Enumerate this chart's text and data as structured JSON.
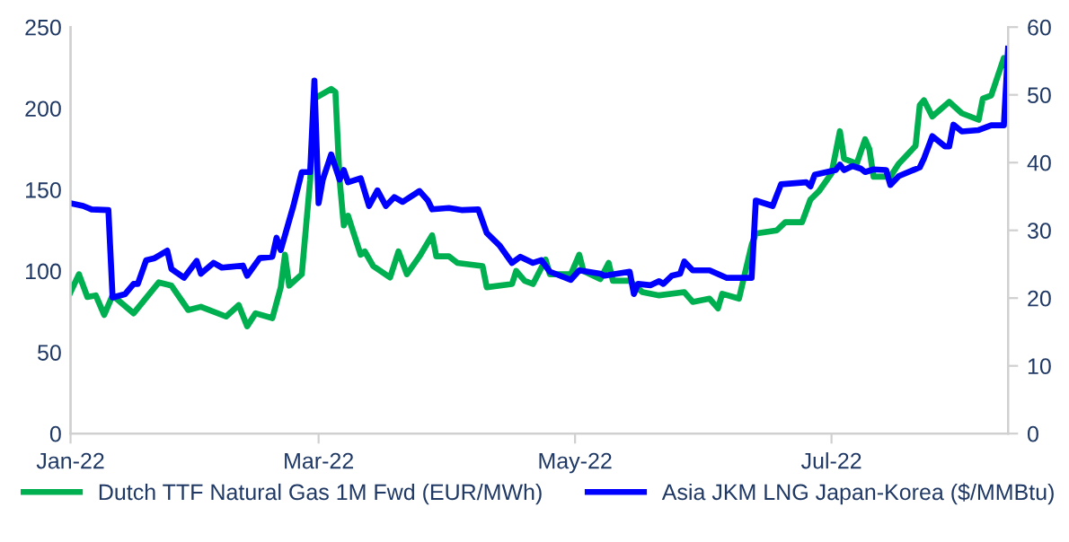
{
  "chart_data": {
    "type": "line",
    "xlim": [
      "2022-01-01",
      "2022-08-12"
    ],
    "xticks": [
      {
        "value": "2022-01-01",
        "label": "Jan-22"
      },
      {
        "value": "2022-03-01",
        "label": "Mar-22"
      },
      {
        "value": "2022-05-01",
        "label": "May-22"
      },
      {
        "value": "2022-07-01",
        "label": "Jul-22"
      }
    ],
    "ylim": [
      0,
      250
    ],
    "yticks": [
      0,
      50,
      100,
      150,
      200,
      250
    ],
    "y2lim": [
      0,
      60
    ],
    "y2ticks": [
      0,
      10,
      20,
      30,
      40,
      50,
      60
    ],
    "grid": false,
    "legend": "bottom",
    "marker": "none",
    "line_style": "solid",
    "series": [
      {
        "name": "Dutch TTF Natural Gas 1M Fwd (EUR/MWh)",
        "color": "#00b050",
        "x": [
          "2022-01-01",
          "2022-01-03",
          "2022-01-05",
          "2022-01-07",
          "2022-01-09",
          "2022-01-11",
          "2022-01-16",
          "2022-01-22",
          "2022-01-25",
          "2022-01-29",
          "2022-02-01",
          "2022-02-07",
          "2022-02-10",
          "2022-02-12",
          "2022-02-14",
          "2022-02-18",
          "2022-02-20",
          "2022-02-21",
          "2022-02-22",
          "2022-02-25",
          "2022-02-27",
          "2022-02-28",
          "2022-03-04",
          "2022-03-05",
          "2022-03-06",
          "2022-03-07",
          "2022-03-08",
          "2022-03-11",
          "2022-03-12",
          "2022-03-14",
          "2022-03-18",
          "2022-03-20",
          "2022-03-22",
          "2022-03-25",
          "2022-03-28",
          "2022-03-29",
          "2022-04-01",
          "2022-04-03",
          "2022-04-09",
          "2022-04-10",
          "2022-04-16",
          "2022-04-17",
          "2022-04-19",
          "2022-04-21",
          "2022-04-24",
          "2022-04-25",
          "2022-04-30",
          "2022-05-02",
          "2022-05-03",
          "2022-05-07",
          "2022-05-09",
          "2022-05-10",
          "2022-05-14",
          "2022-05-17",
          "2022-05-21",
          "2022-05-27",
          "2022-05-29",
          "2022-06-02",
          "2022-06-04",
          "2022-06-05",
          "2022-06-09",
          "2022-06-12",
          "2022-06-13",
          "2022-06-18",
          "2022-06-20",
          "2022-06-24",
          "2022-06-26",
          "2022-06-28",
          "2022-07-01",
          "2022-07-03",
          "2022-07-04",
          "2022-07-07",
          "2022-07-09",
          "2022-07-10",
          "2022-07-11",
          "2022-07-15",
          "2022-07-17",
          "2022-07-21",
          "2022-07-22",
          "2022-07-23",
          "2022-07-25",
          "2022-07-29",
          "2022-08-01",
          "2022-08-05",
          "2022-08-06",
          "2022-08-08",
          "2022-08-11",
          "2022-08-12"
        ],
        "values": [
          87,
          98,
          84,
          85,
          73,
          85,
          74,
          93,
          91,
          76,
          78,
          72,
          79,
          66,
          74,
          71,
          90,
          110,
          91,
          98,
          156,
          206,
          212,
          210,
          156,
          128,
          134,
          110,
          112,
          103,
          96,
          112,
          98,
          109,
          122,
          109,
          109,
          105,
          103,
          90,
          92,
          100,
          94,
          92,
          107,
          98,
          98,
          110,
          100,
          95,
          105,
          94,
          94,
          87,
          85,
          87,
          81,
          83,
          77,
          86,
          83,
          116,
          123,
          125,
          130,
          130,
          144,
          149,
          160,
          186,
          169,
          166,
          181,
          175,
          158,
          158,
          166,
          177,
          202,
          205,
          195,
          204,
          197,
          193,
          206,
          208,
          231,
          223
        ]
      },
      {
        "name": "Asia JKM LNG Japan-Korea ($/MMBtu)",
        "color": "#0000ff",
        "axis": "y2",
        "x": [
          "2022-01-01",
          "2022-01-04",
          "2022-01-06",
          "2022-01-10",
          "2022-01-11",
          "2022-01-14",
          "2022-01-16",
          "2022-01-17",
          "2022-01-19",
          "2022-01-21",
          "2022-01-24",
          "2022-01-25",
          "2022-01-28",
          "2022-01-31",
          "2022-02-01",
          "2022-02-04",
          "2022-02-06",
          "2022-02-11",
          "2022-02-12",
          "2022-02-15",
          "2022-02-18",
          "2022-02-19",
          "2022-02-20",
          "2022-02-23",
          "2022-02-25",
          "2022-02-27",
          "2022-02-28",
          "2022-03-01",
          "2022-03-02",
          "2022-03-04",
          "2022-03-06",
          "2022-03-07",
          "2022-03-08",
          "2022-03-11",
          "2022-03-13",
          "2022-03-15",
          "2022-03-17",
          "2022-03-19",
          "2022-03-21",
          "2022-03-25",
          "2022-03-27",
          "2022-03-28",
          "2022-04-01",
          "2022-04-04",
          "2022-04-08",
          "2022-04-10",
          "2022-04-13",
          "2022-04-16",
          "2022-04-18",
          "2022-04-21",
          "2022-04-23",
          "2022-04-25",
          "2022-04-30",
          "2022-05-02",
          "2022-05-07",
          "2022-05-08",
          "2022-05-14",
          "2022-05-15",
          "2022-05-16",
          "2022-05-19",
          "2022-05-21",
          "2022-05-22",
          "2022-05-24",
          "2022-05-26",
          "2022-05-27",
          "2022-05-29",
          "2022-06-02",
          "2022-06-06",
          "2022-06-12",
          "2022-06-13",
          "2022-06-17",
          "2022-06-19",
          "2022-06-25",
          "2022-06-26",
          "2022-06-27",
          "2022-07-02",
          "2022-07-03",
          "2022-07-04",
          "2022-07-06",
          "2022-07-08",
          "2022-07-09",
          "2022-07-11",
          "2022-07-14",
          "2022-07-15",
          "2022-07-17",
          "2022-07-22",
          "2022-07-23",
          "2022-07-25",
          "2022-07-28",
          "2022-07-29",
          "2022-07-30",
          "2022-08-01",
          "2022-08-05",
          "2022-08-08",
          "2022-08-11",
          "2022-08-12"
        ],
        "values": [
          34.0,
          33.6,
          33.1,
          33.0,
          20.1,
          20.6,
          22.1,
          22.1,
          25.6,
          25.9,
          27.0,
          24.3,
          23.0,
          25.5,
          23.6,
          25.2,
          24.5,
          24.8,
          23.3,
          25.9,
          26.1,
          28.9,
          27.1,
          33.6,
          38.6,
          38.6,
          52.1,
          34.0,
          37.5,
          41.2,
          37.5,
          38.9,
          37.1,
          37.7,
          33.6,
          35.9,
          33.6,
          34.9,
          34.2,
          35.8,
          34.4,
          33.1,
          33.3,
          33.0,
          33.1,
          29.6,
          27.8,
          25.2,
          26.1,
          25.2,
          25.6,
          23.9,
          22.7,
          24.1,
          23.6,
          23.3,
          23.9,
          20.6,
          22.1,
          21.9,
          22.5,
          22.1,
          23.3,
          23.6,
          25.4,
          24.1,
          24.1,
          23.0,
          23.0,
          34.4,
          33.6,
          36.8,
          37.1,
          36.5,
          38.2,
          38.9,
          39.7,
          38.9,
          39.5,
          39.1,
          38.6,
          39.0,
          38.9,
          36.7,
          38.0,
          39.3,
          40.6,
          43.9,
          42.4,
          42.4,
          45.6,
          44.6,
          44.8,
          45.5,
          45.5,
          56.8
        ]
      }
    ]
  }
}
